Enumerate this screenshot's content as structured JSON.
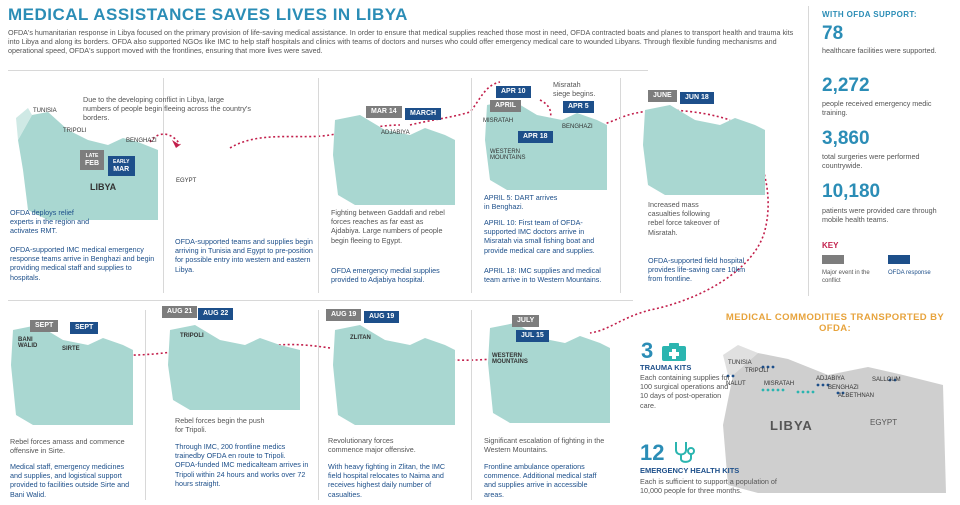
{
  "title": "MEDICAL ASSISTANCE SAVES LIVES IN LIBYA",
  "intro": "OFDA's humanitarian response in Libya focused on the primary provision of life-saving medical assistance. In order to ensure that medical supplies reached those most in need, OFDA contracted boats and planes to transport health and trauma kits into Libya and along its borders. OFDA also supported NGOs like IMC to help staff hospitals and clinics with teams of doctors and nurses who could offer emergency medical care to wounded Libyans. Through flexible funding mechanisms and operational speed, OFDA's support moved with the frontlines, ensuring that more lives were saved.",
  "panel1": {
    "note": "Due to the developing conflict in Libya, large numbers of people begin fleeing across the country's borders.",
    "labels": [
      "TUNISIA",
      "TRIPOLI",
      "BENGHAZI",
      "EGYPT",
      "LIBYA"
    ],
    "flag_gray": [
      "LATE",
      "FEB"
    ],
    "flag_blue": [
      "EARLY",
      "MAR"
    ],
    "text_blue_1": "OFDA deploys relief experts in the region and activates RMT.",
    "text_blue_2": "OFDA-supported IMC medical emergency response teams arrive in Benghazi and begin providing medical staff and supplies to hospitals.",
    "text_blue_3": "OFDA-supported teams and supplies begin arriving in Tunisia and Egypt to pre-position for possible entry into western and eastern Libya."
  },
  "panel2": {
    "flag_gray": "MAR 14",
    "flag_blue": "MARCH",
    "label": "ADJABIYA",
    "text_gray": "Fighting between Gaddafi and rebel forces reaches as far east as Ajdabiya. Large numbers of people begin fleeing to Egypt.",
    "text_blue": "OFDA emergency medial supplies provided to Adjabiya hospital."
  },
  "panel3": {
    "note": "Misratah siege begins.",
    "flags": [
      "APR 10",
      "APRIL",
      "APR 5",
      "APR 18"
    ],
    "labels": [
      "MISRATAH",
      "BENGHAZI",
      "WESTERN MOUNTAINS"
    ],
    "text1": "APRIL 5: DART arrives in Benghazi.",
    "text2": "APRIL 10: First team of OFDA-supported IMC doctors arrive in Misratah via small fishing boat and provide medical care and supplies.",
    "text3": "APRIL 18: IMC supplies and medical team arrive in to Western Mountains."
  },
  "panel4": {
    "flag_gray": "JUNE",
    "flag_blue": "JUN 18",
    "text_gray": "Increased mass casualties following rebel force takeover of Misratah.",
    "text_blue": "OFDA-supported field hospital provides life-saving care 10km from frontline."
  },
  "panel5": {
    "flag_gray": "SEPT",
    "flag_blue": "SEPT",
    "labels": [
      "BANI WALID",
      "SIRTE"
    ],
    "text_gray": "Rebel forces amass and commence offensive in Sirte.",
    "text_blue": "Medical staff, emergency medicines and supplies, and logistical support provided to facilities outside Sirte and Bani Walid."
  },
  "panel6": {
    "flag_gray": "AUG 21",
    "flag_blue": "AUG 22",
    "label": "TRIPOLI",
    "text_gray": "Rebel forces begin the push for Tripoli.",
    "text_blue": "Through IMC, 200 frontline medics trainedby OFDA en route to Tripoli. OFDA-funded IMC medicalteam arrives in Tripoli within 24 hours and works over 72 hours straight."
  },
  "panel7": {
    "flag_gray": "AUG 19",
    "flag_blue": "AUG 19",
    "label": "ZLITAN",
    "text_gray": "Revolutionary forces commence major offensive.",
    "text_blue": "With heavy fighting in Zlitan, the IMC field hospital relocates to Naima and receives highest daily number of casualties."
  },
  "panel8": {
    "flag_gray": "JULY",
    "flag_blue": "JUL 15",
    "label": "WESTERN MOUNTAINS",
    "text_gray": "Significant escalation of fighting in the Western Mountains.",
    "text_blue": "Frontline ambulance operations commence. Additional medical staff and supplies arrive in accessible areas."
  },
  "sidebar": {
    "header": "WITH OFDA SUPPORT:",
    "stats": [
      {
        "num": "78",
        "text": "healthcare facilities were supported."
      },
      {
        "num": "2,272",
        "text": "people received emergency medic training."
      },
      {
        "num": "3,860",
        "text": "total surgeries were performed countrywide."
      },
      {
        "num": "10,180",
        "text": "patients were provided care through mobile health teams."
      }
    ],
    "key_title": "KEY",
    "key_gray": "Major event in the conflict",
    "key_blue": "OFDA response"
  },
  "commodities": {
    "title": "MEDICAL COMMODITIES TRANSPORTED BY OFDA:",
    "trauma_num": "3",
    "trauma_title": "TRAUMA KITS",
    "trauma_text": "Each containing supplies for 100 surgical operations and 10 days of post-operation care.",
    "health_num": "12",
    "health_title": "EMERGENCY HEALTH KITS",
    "health_text": "Each is sufficient to support a population of 10,000 people for three months.",
    "map_labels": [
      "TUNISIA",
      "TRIPOLI",
      "NALUT",
      "MISRATAH",
      "ADJABIYA",
      "BENGHAZI",
      "SALLOUM",
      "LIBYA",
      "EGYPT"
    ],
    "map_labels_nbsp": [
      "ALBETHNAN"
    ]
  },
  "colors": {
    "accent": "#2b8db6",
    "ofda_blue": "#1d4f8a",
    "event_gray": "#7d7d7d",
    "map_fill": "#a9d7d1",
    "route": "#c21f4b"
  }
}
